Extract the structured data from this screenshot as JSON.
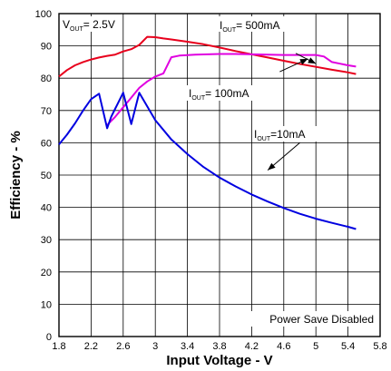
{
  "chart_data": {
    "type": "line",
    "xlabel": "Input Voltage - V",
    "ylabel": "Efficiency - %",
    "xlim": [
      1.8,
      5.8
    ],
    "ylim": [
      0,
      100
    ],
    "x_ticks": [
      "1.8",
      "2.2",
      "2.6",
      "3",
      "3.4",
      "3.8",
      "4.2",
      "4.6",
      "5",
      "5.4",
      "5.8"
    ],
    "y_ticks": [
      "0",
      "10",
      "20",
      "30",
      "40",
      "50",
      "60",
      "70",
      "80",
      "90",
      "100"
    ],
    "grid": true,
    "annotations": {
      "vout": {
        "main": "V",
        "sub": "OUT",
        "rest": "= 2.5V"
      },
      "i500": {
        "main": "I",
        "sub": "OUT",
        "rest": "= 500mA"
      },
      "i100": {
        "main": "I",
        "sub": "OUT",
        "rest": "= 100mA"
      },
      "i10": {
        "main": "I",
        "sub": "OUT",
        "rest": "=10mA"
      },
      "mode": "Power Save Disabled"
    },
    "series": [
      {
        "color": "#e8001c",
        "points": [
          [
            1.8,
            80.5
          ],
          [
            1.9,
            82.5
          ],
          [
            2.0,
            84.0
          ],
          [
            2.1,
            85.0
          ],
          [
            2.2,
            85.8
          ],
          [
            2.3,
            86.4
          ],
          [
            2.4,
            86.9
          ],
          [
            2.5,
            87.3
          ],
          [
            2.6,
            88.3
          ],
          [
            2.7,
            89.0
          ],
          [
            2.8,
            90.3
          ],
          [
            2.9,
            92.8
          ],
          [
            3.0,
            92.7
          ],
          [
            3.1,
            92.3
          ],
          [
            3.2,
            92.0
          ],
          [
            3.4,
            91.3
          ],
          [
            3.6,
            90.5
          ],
          [
            3.8,
            89.5
          ],
          [
            4.0,
            88.4
          ],
          [
            4.2,
            87.4
          ],
          [
            4.4,
            86.4
          ],
          [
            4.6,
            85.4
          ],
          [
            4.8,
            84.4
          ],
          [
            5.0,
            83.5
          ],
          [
            5.2,
            82.6
          ],
          [
            5.4,
            81.8
          ],
          [
            5.5,
            81.3
          ]
        ]
      },
      {
        "color": "#e000e0",
        "points": [
          [
            2.4,
            65.5
          ],
          [
            2.5,
            68.0
          ],
          [
            2.6,
            71.0
          ],
          [
            2.7,
            74.0
          ],
          [
            2.8,
            77.0
          ],
          [
            2.9,
            79.0
          ],
          [
            3.0,
            80.5
          ],
          [
            3.1,
            81.5
          ],
          [
            3.2,
            86.5
          ],
          [
            3.3,
            87.0
          ],
          [
            3.5,
            87.3
          ],
          [
            3.8,
            87.5
          ],
          [
            4.0,
            87.5
          ],
          [
            4.2,
            87.4
          ],
          [
            4.4,
            87.3
          ],
          [
            4.6,
            87.2
          ],
          [
            4.8,
            87.2
          ],
          [
            5.0,
            87.2
          ],
          [
            5.1,
            86.7
          ],
          [
            5.2,
            85.0
          ],
          [
            5.3,
            84.5
          ],
          [
            5.4,
            84.0
          ],
          [
            5.5,
            83.6
          ]
        ]
      },
      {
        "color": "#0000e0",
        "points": [
          [
            1.8,
            59.5
          ],
          [
            1.9,
            62.5
          ],
          [
            2.0,
            66.0
          ],
          [
            2.1,
            70.0
          ],
          [
            2.2,
            73.5
          ],
          [
            2.3,
            75.2
          ],
          [
            2.4,
            64.5
          ],
          [
            2.45,
            68.0
          ],
          [
            2.5,
            70.5
          ],
          [
            2.6,
            75.5
          ],
          [
            2.7,
            65.8
          ],
          [
            2.8,
            75.5
          ],
          [
            3.0,
            67.0
          ],
          [
            3.2,
            61.0
          ],
          [
            3.4,
            56.5
          ],
          [
            3.6,
            52.5
          ],
          [
            3.8,
            49.2
          ],
          [
            4.0,
            46.5
          ],
          [
            4.2,
            44.0
          ],
          [
            4.4,
            41.8
          ],
          [
            4.6,
            39.8
          ],
          [
            4.8,
            38.0
          ],
          [
            5.0,
            36.5
          ],
          [
            5.2,
            35.2
          ],
          [
            5.4,
            34.0
          ],
          [
            5.5,
            33.3
          ]
        ]
      }
    ],
    "arrows": [
      {
        "from": [
          4.75,
          87.7
        ],
        "to": [
          5.0,
          84.5
        ]
      },
      {
        "from": [
          4.55,
          82.0
        ],
        "to": [
          4.9,
          86.0
        ]
      },
      {
        "from": [
          4.8,
          60.0
        ],
        "to": [
          4.4,
          51.5
        ]
      }
    ]
  }
}
